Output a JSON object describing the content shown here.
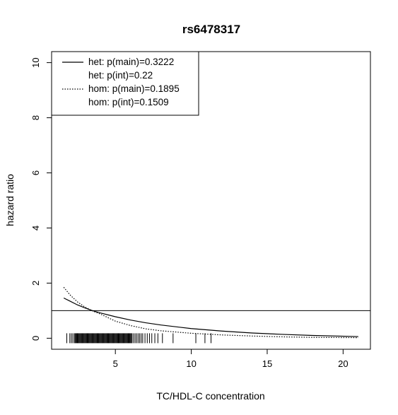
{
  "chart_data": {
    "type": "line",
    "title": "rs6478317",
    "xlabel": "TC/HDL-C concentration",
    "ylabel": "hazard ratio",
    "xlim": [
      0.8,
      21.8
    ],
    "ylim": [
      -0.4,
      10.4
    ],
    "x_ticks": [
      5,
      10,
      15,
      20
    ],
    "y_ticks": [
      0,
      2,
      4,
      6,
      8,
      10
    ],
    "grid": false,
    "legend_position": "top-left",
    "reference_line_y": 1,
    "legend": [
      {
        "label": "het: p(main)=0.3222",
        "line": "solid"
      },
      {
        "label": "het: p(int)=0.22",
        "line": "none"
      },
      {
        "label": "hom: p(main)=0.1895",
        "line": "dotted"
      },
      {
        "label": "hom: p(int)=0.1509",
        "line": "none"
      }
    ],
    "series": [
      {
        "style": "solid",
        "x": [
          1.6,
          2,
          2.5,
          3,
          3.5,
          4,
          5,
          6,
          7,
          8,
          10,
          12,
          14,
          16,
          18,
          21
        ],
        "y": [
          1.46,
          1.35,
          1.21,
          1.1,
          1.0,
          0.92,
          0.78,
          0.66,
          0.56,
          0.48,
          0.35,
          0.26,
          0.19,
          0.14,
          0.1,
          0.06
        ]
      },
      {
        "style": "dotted",
        "x": [
          1.6,
          2,
          2.5,
          3,
          3.5,
          4,
          5,
          6,
          7,
          8,
          10,
          12,
          14,
          16,
          18,
          21
        ],
        "y": [
          1.85,
          1.58,
          1.32,
          1.13,
          0.99,
          0.88,
          0.62,
          0.46,
          0.34,
          0.27,
          0.18,
          0.12,
          0.08,
          0.05,
          0.03,
          0.02
        ]
      }
    ],
    "rug": {
      "y": 0,
      "x": [
        1.8,
        2.0,
        2.1,
        2.2,
        2.3,
        2.35,
        2.4,
        2.45,
        2.5,
        2.55,
        2.6,
        2.65,
        2.7,
        2.75,
        2.8,
        2.85,
        2.9,
        2.95,
        3.0,
        3.05,
        3.1,
        3.15,
        3.2,
        3.25,
        3.3,
        3.35,
        3.4,
        3.45,
        3.5,
        3.55,
        3.6,
        3.65,
        3.7,
        3.75,
        3.8,
        3.85,
        3.9,
        3.95,
        4.0,
        4.05,
        4.1,
        4.15,
        4.2,
        4.25,
        4.3,
        4.35,
        4.4,
        4.45,
        4.5,
        4.55,
        4.6,
        4.65,
        4.7,
        4.75,
        4.8,
        4.85,
        4.9,
        4.95,
        5.0,
        5.05,
        5.1,
        5.15,
        5.2,
        5.25,
        5.3,
        5.35,
        5.4,
        5.45,
        5.5,
        5.55,
        5.6,
        5.65,
        5.7,
        5.75,
        5.8,
        5.85,
        5.9,
        5.95,
        6.0,
        6.05,
        6.1,
        6.2,
        6.3,
        6.4,
        6.5,
        6.6,
        6.7,
        6.8,
        6.95,
        7.1,
        7.25,
        7.4,
        7.6,
        7.8,
        8.1,
        8.8,
        10.3,
        10.9,
        11.3
      ]
    }
  }
}
